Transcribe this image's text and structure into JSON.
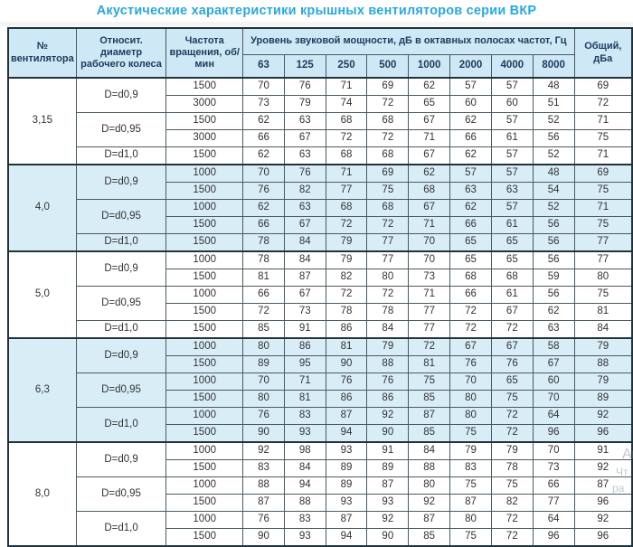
{
  "title": "Акустические характеристики крышных вентиляторов серии ВКР",
  "colors": {
    "accent_blue": "#29a8df",
    "header_bg": "#cfe8f5",
    "shaded_row_bg": "#d9edf7",
    "header_text": "#1b3a5e",
    "border_dark": "#22323c"
  },
  "watermark": {
    "line1": "Ан",
    "line2": "Чт",
    "line3": "ра"
  },
  "table": {
    "header": {
      "fan": "№ вентилятора",
      "diameter": "Относит. диаметр рабочего колеса",
      "rpm": "Частота вращения, об/мин",
      "level_group": "Уровень звуковой мощности, дБ в октавных полосах частот, Гц",
      "total": "Общий, дБа"
    },
    "frequencies": [
      "63",
      "125",
      "250",
      "500",
      "1000",
      "2000",
      "4000",
      "8000"
    ],
    "sections": [
      {
        "fan": "3,15",
        "shaded": false,
        "groups": [
          {
            "diameter": "D=d0,9",
            "rows": [
              {
                "rpm": "1500",
                "values": [
                  70,
                  76,
                  71,
                  69,
                  62,
                  57,
                  57,
                  48
                ],
                "total": 69
              },
              {
                "rpm": "3000",
                "values": [
                  73,
                  79,
                  74,
                  72,
                  65,
                  60,
                  60,
                  51
                ],
                "total": 72
              }
            ]
          },
          {
            "diameter": "D=d0,95",
            "rows": [
              {
                "rpm": "1500",
                "values": [
                  62,
                  63,
                  68,
                  68,
                  67,
                  62,
                  57,
                  52
                ],
                "total": 71
              },
              {
                "rpm": "3000",
                "values": [
                  66,
                  67,
                  72,
                  72,
                  71,
                  66,
                  61,
                  56
                ],
                "total": 75
              }
            ]
          },
          {
            "diameter": "D=d1,0",
            "rows": [
              {
                "rpm": "1500",
                "values": [
                  62,
                  63,
                  68,
                  68,
                  67,
                  62,
                  57,
                  52
                ],
                "total": 71
              }
            ]
          }
        ]
      },
      {
        "fan": "4,0",
        "shaded": true,
        "groups": [
          {
            "diameter": "D=d0,9",
            "rows": [
              {
                "rpm": "1000",
                "values": [
                  70,
                  76,
                  71,
                  69,
                  62,
                  57,
                  57,
                  48
                ],
                "total": 69
              },
              {
                "rpm": "1500",
                "values": [
                  76,
                  82,
                  77,
                  75,
                  68,
                  63,
                  63,
                  54
                ],
                "total": 75
              }
            ]
          },
          {
            "diameter": "D=d0,95",
            "rows": [
              {
                "rpm": "1000",
                "values": [
                  62,
                  63,
                  68,
                  68,
                  67,
                  62,
                  57,
                  52
                ],
                "total": 71
              },
              {
                "rpm": "1500",
                "values": [
                  66,
                  67,
                  72,
                  72,
                  71,
                  66,
                  61,
                  56
                ],
                "total": 75
              }
            ]
          },
          {
            "diameter": "D=d1,0",
            "rows": [
              {
                "rpm": "1500",
                "values": [
                  78,
                  84,
                  79,
                  77,
                  70,
                  65,
                  65,
                  56
                ],
                "total": 77
              }
            ]
          }
        ]
      },
      {
        "fan": "5,0",
        "shaded": false,
        "groups": [
          {
            "diameter": "D=d0,9",
            "rows": [
              {
                "rpm": "1000",
                "values": [
                  78,
                  84,
                  79,
                  77,
                  70,
                  65,
                  65,
                  56
                ],
                "total": 77
              },
              {
                "rpm": "1500",
                "values": [
                  81,
                  87,
                  82,
                  80,
                  73,
                  68,
                  68,
                  59
                ],
                "total": 80
              }
            ]
          },
          {
            "diameter": "D=d0,95",
            "rows": [
              {
                "rpm": "1000",
                "values": [
                  66,
                  67,
                  72,
                  72,
                  71,
                  66,
                  61,
                  56
                ],
                "total": 75
              },
              {
                "rpm": "1500",
                "values": [
                  72,
                  73,
                  78,
                  78,
                  77,
                  72,
                  67,
                  62
                ],
                "total": 81
              }
            ]
          },
          {
            "diameter": "D=d1,0",
            "rows": [
              {
                "rpm": "1500",
                "values": [
                  85,
                  91,
                  86,
                  84,
                  77,
                  72,
                  72,
                  63
                ],
                "total": 84
              }
            ]
          }
        ]
      },
      {
        "fan": "6,3",
        "shaded": true,
        "groups": [
          {
            "diameter": "D=d0,9",
            "rows": [
              {
                "rpm": "1000",
                "values": [
                  80,
                  86,
                  81,
                  79,
                  72,
                  67,
                  67,
                  58
                ],
                "total": 79
              },
              {
                "rpm": "1500",
                "values": [
                  89,
                  95,
                  90,
                  88,
                  81,
                  76,
                  76,
                  67
                ],
                "total": 88
              }
            ]
          },
          {
            "diameter": "D=d0,95",
            "rows": [
              {
                "rpm": "1000",
                "values": [
                  70,
                  71,
                  76,
                  76,
                  75,
                  70,
                  65,
                  60
                ],
                "total": 79
              },
              {
                "rpm": "1500",
                "values": [
                  80,
                  81,
                  86,
                  86,
                  85,
                  80,
                  75,
                  70
                ],
                "total": 89
              }
            ]
          },
          {
            "diameter": "D=d1,0",
            "rows": [
              {
                "rpm": "1000",
                "values": [
                  76,
                  83,
                  87,
                  92,
                  87,
                  80,
                  72,
                  64
                ],
                "total": 92
              },
              {
                "rpm": "1500",
                "values": [
                  90,
                  93,
                  94,
                  90,
                  85,
                  75,
                  72,
                  96
                ],
                "total": 96
              }
            ]
          }
        ]
      },
      {
        "fan": "8,0",
        "shaded": false,
        "groups": [
          {
            "diameter": "D=d0,9",
            "rows": [
              {
                "rpm": "1000",
                "values": [
                  92,
                  98,
                  93,
                  91,
                  84,
                  79,
                  79,
                  70
                ],
                "total": 91
              },
              {
                "rpm": "1500",
                "values": [
                  83,
                  84,
                  89,
                  89,
                  88,
                  83,
                  78,
                  73
                ],
                "total": 92
              }
            ]
          },
          {
            "diameter": "D=d0,95",
            "rows": [
              {
                "rpm": "1000",
                "values": [
                  88,
                  94,
                  89,
                  87,
                  80,
                  75,
                  75,
                  66
                ],
                "total": 87
              },
              {
                "rpm": "1500",
                "values": [
                  87,
                  88,
                  93,
                  93,
                  92,
                  87,
                  82,
                  77
                ],
                "total": 96
              }
            ]
          },
          {
            "diameter": "D=d1,0",
            "rows": [
              {
                "rpm": "1000",
                "values": [
                  76,
                  83,
                  87,
                  92,
                  87,
                  80,
                  72,
                  64
                ],
                "total": 92
              },
              {
                "rpm": "1500",
                "values": [
                  90,
                  93,
                  94,
                  90,
                  85,
                  75,
                  72,
                  96
                ],
                "total": 96
              }
            ]
          }
        ]
      }
    ]
  }
}
